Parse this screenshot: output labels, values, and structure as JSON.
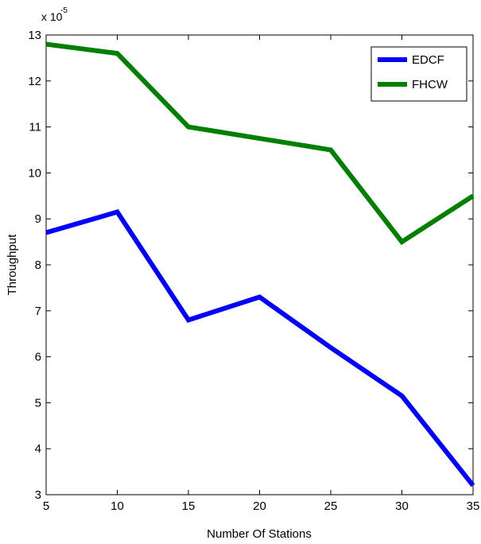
{
  "chart_data": {
    "type": "line",
    "title": "",
    "xlabel": "Number Of Stations",
    "ylabel": "Throughput",
    "y_scale_factor": "x 10",
    "y_scale_exponent": "-5",
    "xlim": [
      5,
      35
    ],
    "ylim": [
      3,
      13
    ],
    "x_ticks": [
      5,
      10,
      15,
      20,
      25,
      30,
      35
    ],
    "y_ticks": [
      3,
      4,
      5,
      6,
      7,
      8,
      9,
      10,
      11,
      12,
      13
    ],
    "grid": false,
    "legend_position": "top-right",
    "x": [
      5,
      10,
      15,
      20,
      25,
      30,
      35
    ],
    "series": [
      {
        "name": "EDCF",
        "color": "#0000ff",
        "values": [
          8.7,
          9.15,
          6.8,
          7.3,
          6.2,
          5.15,
          3.2
        ]
      },
      {
        "name": "FHCW",
        "color": "#008000",
        "values": [
          12.8,
          12.6,
          11.0,
          10.75,
          10.5,
          8.5,
          9.5
        ]
      }
    ]
  }
}
